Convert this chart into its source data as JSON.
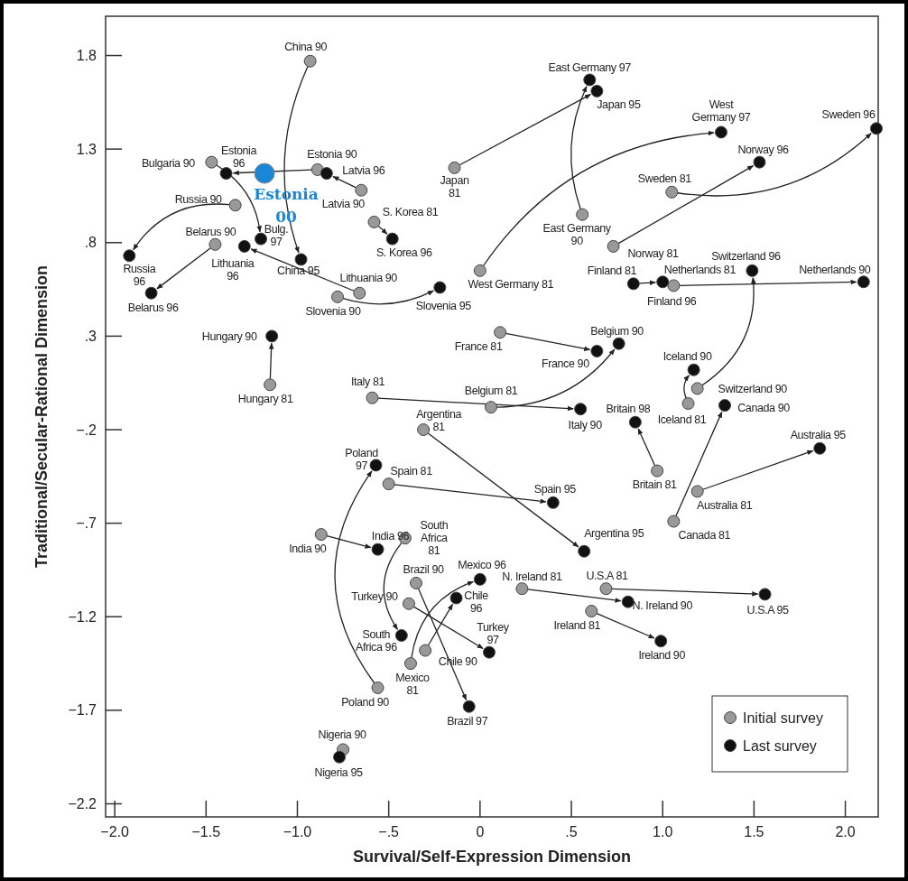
{
  "chart_data": {
    "type": "scatter",
    "xlabel": "Survival/Self-Expression Dimension",
    "ylabel": "Traditional/Secular-Rational Dimension",
    "xlim": [
      -2.05,
      2.18
    ],
    "ylim": [
      -2.27,
      2.01
    ],
    "xticks": [
      {
        "value": -2,
        "label": "−2.0"
      },
      {
        "value": -1.5,
        "label": "−1.5"
      },
      {
        "value": -1,
        "label": "−1.0"
      },
      {
        "value": -0.5,
        "label": "−.5"
      },
      0,
      {
        "value": 0.5,
        "label": ".5"
      },
      {
        "value": 1,
        "label": "1.0"
      },
      1.5,
      {
        "value": 2,
        "label": "2.0"
      }
    ],
    "yticks": [
      1.8,
      1.3,
      {
        "value": 0.8,
        "label": ".8"
      },
      {
        "value": 0.3,
        "label": ".3"
      },
      {
        "value": -0.2,
        "label": "−.2"
      },
      {
        "value": -0.7,
        "label": "−.7"
      },
      {
        "value": -1.2,
        "label": "−1.2"
      },
      {
        "value": -1.7,
        "label": "−1.7"
      },
      {
        "value": -2.2,
        "label": "−2.2"
      }
    ],
    "grid": false,
    "legend": "bottom right",
    "marker": "circle",
    "series": [
      {
        "name": "Initial survey",
        "color": "#999999",
        "x": [
          -0.93,
          -0.89,
          -0.65,
          -1.47,
          -1.34,
          -1.45,
          -0.66,
          -0.78,
          -0.58,
          -1.15,
          -0.14,
          0.56,
          0.0,
          1.05,
          0.73,
          0.84,
          1.06,
          1.19,
          0.11,
          0.06,
          1.14,
          1.06,
          0.97,
          1.19,
          -0.59,
          -0.31,
          -0.5,
          -0.56,
          -0.87,
          -0.41,
          -0.35,
          -0.38,
          -0.3,
          -0.39,
          0.23,
          0.69,
          0.61,
          -0.75
        ],
        "values": [
          1.77,
          1.19,
          1.08,
          1.23,
          1.0,
          0.79,
          0.53,
          0.51,
          0.91,
          0.04,
          1.2,
          0.95,
          0.65,
          1.07,
          0.78,
          0.58,
          0.57,
          0.02,
          0.32,
          -0.08,
          -0.06,
          -0.69,
          -0.42,
          -0.53,
          -0.03,
          -0.2,
          -0.49,
          -1.58,
          -0.76,
          -0.78,
          -1.02,
          -1.45,
          -1.38,
          -1.13,
          -1.05,
          -1.05,
          -1.17,
          -1.91
        ],
        "colors": [
          "#999999",
          "#999999",
          "#999999",
          "#999999",
          "#999999",
          "#999999",
          "#999999",
          "#999999",
          "#999999",
          "#999999",
          "#999999",
          "#999999",
          "#999999",
          "#999999",
          "#999999",
          "#111111",
          "#999999",
          "#999999",
          "#999999",
          "#999999",
          "#999999",
          "#999999",
          "#999999",
          "#999999",
          "#999999",
          "#999999",
          "#999999",
          "#999999",
          "#999999",
          "#999999",
          "#999999",
          "#999999",
          "#999999",
          "#999999",
          "#999999",
          "#999999",
          "#999999",
          "#999999"
        ]
      },
      {
        "name": "Last survey",
        "color": "#111111",
        "x": [
          -0.98,
          -1.39,
          -0.84,
          -1.2,
          -1.92,
          -1.8,
          -1.29,
          -0.22,
          -0.48,
          -1.14,
          0.64,
          0.6,
          1.32,
          2.17,
          1.53,
          1.0,
          2.1,
          1.49,
          0.64,
          0.76,
          1.17,
          1.34,
          0.85,
          1.86,
          0.55,
          0.57,
          0.4,
          -0.57,
          -0.56,
          -0.43,
          -0.06,
          0.0,
          -0.13,
          0.05,
          0.81,
          1.56,
          0.99,
          -0.77
        ],
        "values": [
          0.71,
          1.17,
          1.17,
          0.82,
          0.73,
          0.53,
          0.78,
          0.56,
          0.82,
          0.3,
          1.61,
          1.67,
          1.39,
          1.41,
          1.23,
          0.59,
          0.59,
          0.65,
          0.22,
          0.26,
          0.12,
          -0.07,
          -0.16,
          -0.3,
          -0.09,
          -0.85,
          -0.59,
          -0.39,
          -0.84,
          -1.3,
          -1.68,
          -1.0,
          -1.1,
          -1.39,
          -1.12,
          -1.08,
          -1.33,
          -1.95
        ]
      },
      {
        "color": "#1a86d6",
        "x": [
          -1.18
        ],
        "values": [
          1.17
        ]
      }
    ],
    "annotations": [
      {
        "text": "China 90",
        "x": -0.93,
        "y": 1.77
      },
      {
        "text": "China 95",
        "x": -0.98,
        "y": 0.71
      },
      {
        "text": "Estonia 90",
        "x": -0.89,
        "y": 1.19
      },
      {
        "text": "Estonia 96",
        "x": -1.39,
        "y": 1.17
      },
      {
        "text": "Latvia 90",
        "x": -0.65,
        "y": 1.08
      },
      {
        "text": "Latvia 96",
        "x": -0.84,
        "y": 1.17
      },
      {
        "text": "Bulgaria 90",
        "x": -1.47,
        "y": 1.23
      },
      {
        "text": "Bulg. 97",
        "x": -1.2,
        "y": 0.82
      },
      {
        "text": "Russia 90",
        "x": -1.34,
        "y": 1.0
      },
      {
        "text": "Russia 96",
        "x": -1.92,
        "y": 0.73
      },
      {
        "text": "Belarus 90",
        "x": -1.45,
        "y": 0.79
      },
      {
        "text": "Belarus 96",
        "x": -1.8,
        "y": 0.53
      },
      {
        "text": "Lithuania 90",
        "x": -0.66,
        "y": 0.53
      },
      {
        "text": "Lithuania 96",
        "x": -1.29,
        "y": 0.78
      },
      {
        "text": "Slovenia 90",
        "x": -0.78,
        "y": 0.51
      },
      {
        "text": "Slovenia 95",
        "x": -0.22,
        "y": 0.56
      },
      {
        "text": "S. Korea 81",
        "x": -0.58,
        "y": 0.91
      },
      {
        "text": "S. Korea 96",
        "x": -0.48,
        "y": 0.82
      },
      {
        "text": "Hungary 81",
        "x": -1.15,
        "y": 0.04
      },
      {
        "text": "Hungary 90",
        "x": -1.14,
        "y": 0.3
      },
      {
        "text": "Japan 81",
        "x": -0.14,
        "y": 1.2
      },
      {
        "text": "Japan 95",
        "x": 0.64,
        "y": 1.61
      },
      {
        "text": "East Germany 90",
        "x": 0.56,
        "y": 0.95
      },
      {
        "text": "East Germany 97",
        "x": 0.6,
        "y": 1.67
      },
      {
        "text": "West Germany 81",
        "x": 0.0,
        "y": 0.65
      },
      {
        "text": "West Germany 97",
        "x": 1.32,
        "y": 1.39
      },
      {
        "text": "Sweden 81",
        "x": 1.05,
        "y": 1.07
      },
      {
        "text": "Sweden 96",
        "x": 2.17,
        "y": 1.41
      },
      {
        "text": "Norway 81",
        "x": 0.73,
        "y": 0.78
      },
      {
        "text": "Norway 96",
        "x": 1.53,
        "y": 1.23
      },
      {
        "text": "Finland 81",
        "x": 0.84,
        "y": 0.58
      },
      {
        "text": "Finland 96",
        "x": 1.0,
        "y": 0.59
      },
      {
        "text": "Netherlands 81",
        "x": 1.06,
        "y": 0.57
      },
      {
        "text": "Netherlands 90",
        "x": 2.1,
        "y": 0.59
      },
      {
        "text": "Switzerland 90",
        "x": 1.19,
        "y": 0.02
      },
      {
        "text": "Switzerland 96",
        "x": 1.49,
        "y": 0.65
      },
      {
        "text": "France 81",
        "x": 0.11,
        "y": 0.32
      },
      {
        "text": "France 90",
        "x": 0.64,
        "y": 0.22
      },
      {
        "text": "Belgium 81",
        "x": 0.06,
        "y": -0.08
      },
      {
        "text": "Belgium 90",
        "x": 0.76,
        "y": 0.26
      },
      {
        "text": "Iceland 81",
        "x": 1.14,
        "y": -0.06
      },
      {
        "text": "Iceland 90",
        "x": 1.17,
        "y": 0.12
      },
      {
        "text": "Canada 81",
        "x": 1.06,
        "y": -0.69
      },
      {
        "text": "Canada 90",
        "x": 1.34,
        "y": -0.07
      },
      {
        "text": "Britain 81",
        "x": 0.97,
        "y": -0.42
      },
      {
        "text": "Britain 98",
        "x": 0.85,
        "y": -0.16
      },
      {
        "text": "Australia 81",
        "x": 1.19,
        "y": -0.53
      },
      {
        "text": "Australia 95",
        "x": 1.86,
        "y": -0.3
      },
      {
        "text": "Italy 81",
        "x": -0.59,
        "y": -0.03
      },
      {
        "text": "Italy 90",
        "x": 0.55,
        "y": -0.09
      },
      {
        "text": "Argentina 81",
        "x": -0.31,
        "y": -0.2
      },
      {
        "text": "Argentina 95",
        "x": 0.57,
        "y": -0.85
      },
      {
        "text": "Spain 81",
        "x": -0.5,
        "y": -0.49
      },
      {
        "text": "Spain 95",
        "x": 0.4,
        "y": -0.59
      },
      {
        "text": "Poland 90",
        "x": -0.56,
        "y": -1.58
      },
      {
        "text": "Poland 97",
        "x": -0.57,
        "y": -0.39
      },
      {
        "text": "India 90",
        "x": -0.87,
        "y": -0.76
      },
      {
        "text": "India 96",
        "x": -0.56,
        "y": -0.84
      },
      {
        "text": "South Africa 81",
        "x": -0.41,
        "y": -0.78
      },
      {
        "text": "South Africa 96",
        "x": -0.43,
        "y": -1.3
      },
      {
        "text": "Brazil 90",
        "x": -0.35,
        "y": -1.02
      },
      {
        "text": "Brazil 97",
        "x": -0.06,
        "y": -1.68
      },
      {
        "text": "Mexico 81",
        "x": -0.38,
        "y": -1.45
      },
      {
        "text": "Mexico 96",
        "x": 0.0,
        "y": -1.0
      },
      {
        "text": "Chile 90",
        "x": -0.3,
        "y": -1.38
      },
      {
        "text": "Chile 96",
        "x": -0.13,
        "y": -1.1
      },
      {
        "text": "Turkey 90",
        "x": -0.39,
        "y": -1.13
      },
      {
        "text": "Turkey 97",
        "x": 0.05,
        "y": -1.39
      },
      {
        "text": "N. Ireland 81",
        "x": 0.23,
        "y": -1.05
      },
      {
        "text": "N. Ireland 90",
        "x": 0.81,
        "y": -1.12
      },
      {
        "text": "U.S.A 81",
        "x": 0.69,
        "y": -1.05
      },
      {
        "text": "U.S.A 95",
        "x": 1.56,
        "y": -1.08
      },
      {
        "text": "Ireland 81",
        "x": 0.61,
        "y": -1.17
      },
      {
        "text": "Ireland 90",
        "x": 0.99,
        "y": -1.33
      },
      {
        "text": "Nigeria 90",
        "x": -0.75,
        "y": -1.91
      },
      {
        "text": "Nigeria 95",
        "x": -0.77,
        "y": -1.95
      },
      {
        "text": "Estonia 00",
        "x": -1.18,
        "y": 1.17
      }
    ]
  }
}
